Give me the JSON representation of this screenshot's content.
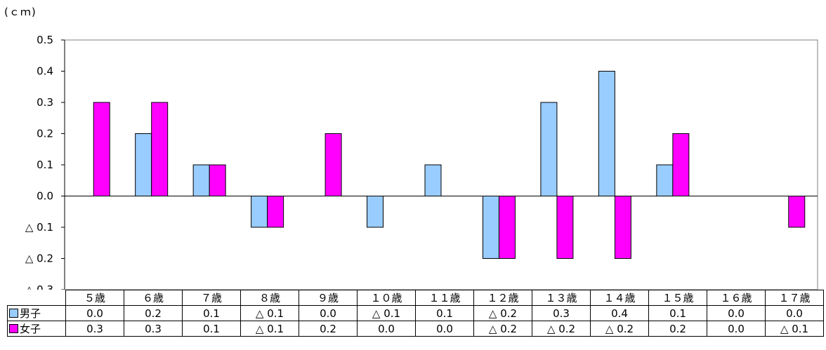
{
  "chart_data": {
    "type": "bar",
    "unit_label": "(ｃｍ)",
    "categories": [
      "５歳",
      "６歳",
      "７歳",
      "８歳",
      "９歳",
      "１０歳",
      "１１歳",
      "１２歳",
      "１３歳",
      "１４歳",
      "１５歳",
      "１６歳",
      "１７歳"
    ],
    "series": [
      {
        "name": "男子",
        "color": "#99ccff",
        "values": [
          0.0,
          0.2,
          0.1,
          -0.1,
          0.0,
          -0.1,
          0.1,
          -0.2,
          0.3,
          0.4,
          0.1,
          0.0,
          0.0
        ],
        "labels": [
          "0.0",
          "0.2",
          "0.1",
          "△ 0.1",
          "0.0",
          "△ 0.1",
          "0.1",
          "△ 0.2",
          "0.3",
          "0.4",
          "0.1",
          "0.0",
          "0.0"
        ]
      },
      {
        "name": "女子",
        "color": "#ff00ff",
        "values": [
          0.3,
          0.3,
          0.1,
          -0.1,
          0.2,
          0.0,
          0.0,
          -0.2,
          -0.2,
          -0.2,
          0.2,
          0.0,
          -0.1
        ],
        "labels": [
          "0.3",
          "0.3",
          "0.1",
          "△ 0.1",
          "0.2",
          "0.0",
          "0.0",
          "△ 0.2",
          "△ 0.2",
          "△ 0.2",
          "0.2",
          "0.0",
          "△ 0.1"
        ]
      }
    ],
    "ylim": [
      -0.3,
      0.5
    ],
    "yticks": [
      {
        "value": 0.5,
        "label": "0.5"
      },
      {
        "value": 0.4,
        "label": "0.4"
      },
      {
        "value": 0.3,
        "label": "0.3"
      },
      {
        "value": 0.2,
        "label": "0.2"
      },
      {
        "value": 0.1,
        "label": "0.1"
      },
      {
        "value": 0.0,
        "label": "0.0"
      },
      {
        "value": -0.1,
        "label": "△ 0.1"
      },
      {
        "value": -0.2,
        "label": "△ 0.2"
      },
      {
        "value": -0.3,
        "label": "△ 0.3"
      }
    ],
    "grid": false,
    "legend": "data-table-left"
  }
}
